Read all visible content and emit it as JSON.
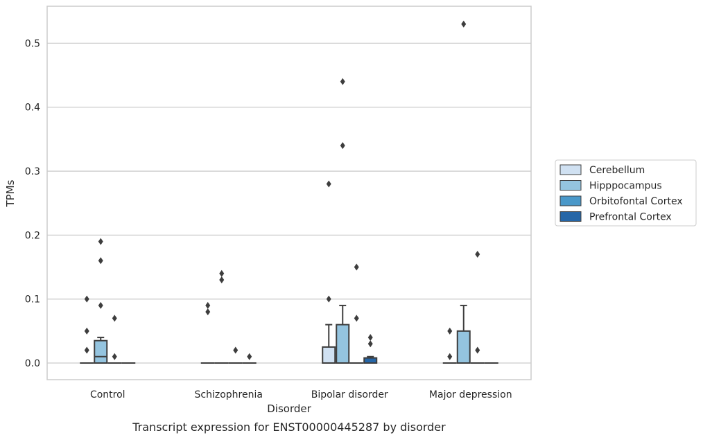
{
  "chart_data": {
    "type": "box",
    "caption": "Transcript expression for ENST00000445287 by disorder",
    "xlabel": "Disorder",
    "ylabel": "TPMs",
    "ylim": [
      -0.026,
      0.556
    ],
    "yticks": [
      0.0,
      0.1,
      0.2,
      0.3,
      0.4,
      0.5
    ],
    "ytick_labels": [
      "0.0",
      "0.1",
      "0.2",
      "0.3",
      "0.4",
      "0.5"
    ],
    "grid": "horizontal",
    "legend_position": "right",
    "categories": [
      "Control",
      "Schizophrenia",
      "Bipolar disorder",
      "Major depression"
    ],
    "series": [
      {
        "name": "Cerebellum",
        "color": "#d0e1f2",
        "boxes": [
          {
            "q1": 0,
            "median": 0,
            "q3": 0,
            "whislo": 0,
            "whishi": 0,
            "fliers": [
              0.02,
              0.05,
              0.1
            ]
          },
          {
            "q1": 0,
            "median": 0,
            "q3": 0,
            "whislo": 0,
            "whishi": 0,
            "fliers": [
              0.08,
              0.09
            ]
          },
          {
            "q1": 0,
            "median": 0,
            "q3": 0.025,
            "whislo": 0,
            "whishi": 0.06,
            "fliers": [
              0.1,
              0.28
            ]
          },
          {
            "q1": 0,
            "median": 0,
            "q3": 0,
            "whislo": 0,
            "whishi": 0,
            "fliers": [
              0.01,
              0.05
            ]
          }
        ]
      },
      {
        "name": "Hipppocampus",
        "color": "#94c4df",
        "boxes": [
          {
            "q1": 0,
            "median": 0.01,
            "q3": 0.035,
            "whislo": 0,
            "whishi": 0.04,
            "fliers": [
              0.09,
              0.16,
              0.19
            ]
          },
          {
            "q1": 0,
            "median": 0,
            "q3": 0,
            "whislo": 0,
            "whishi": 0,
            "fliers": [
              0.13,
              0.14
            ]
          },
          {
            "q1": 0,
            "median": 0,
            "q3": 0.06,
            "whislo": 0,
            "whishi": 0.09,
            "fliers": [
              0.34,
              0.44
            ]
          },
          {
            "q1": 0,
            "median": 0,
            "q3": 0.05,
            "whislo": 0,
            "whishi": 0.09,
            "fliers": [
              0.53
            ]
          }
        ]
      },
      {
        "name": "Orbitofontal Cortex",
        "color": "#4a98c9",
        "boxes": [
          {
            "q1": 0,
            "median": 0,
            "q3": 0,
            "whislo": 0,
            "whishi": 0,
            "fliers": [
              0.01,
              0.07
            ]
          },
          {
            "q1": 0,
            "median": 0,
            "q3": 0,
            "whislo": 0,
            "whishi": 0,
            "fliers": [
              0.02
            ]
          },
          {
            "q1": 0,
            "median": 0,
            "q3": 0,
            "whislo": 0,
            "whishi": 0,
            "fliers": [
              0.07,
              0.15
            ]
          },
          {
            "q1": 0,
            "median": 0,
            "q3": 0,
            "whislo": 0,
            "whishi": 0,
            "fliers": [
              0.02,
              0.17
            ]
          }
        ]
      },
      {
        "name": "Prefrontal Cortex",
        "color": "#2566a7",
        "boxes": [
          {
            "q1": 0,
            "median": 0,
            "q3": 0,
            "whislo": 0,
            "whishi": 0,
            "fliers": []
          },
          {
            "q1": 0,
            "median": 0,
            "q3": 0,
            "whislo": 0,
            "whishi": 0,
            "fliers": [
              0.01
            ]
          },
          {
            "q1": 0,
            "median": 0,
            "q3": 0.008,
            "whislo": 0,
            "whishi": 0.01,
            "fliers": [
              0.03,
              0.04
            ]
          },
          {
            "q1": 0,
            "median": 0,
            "q3": 0,
            "whislo": 0,
            "whishi": 0,
            "fliers": []
          }
        ]
      }
    ]
  }
}
